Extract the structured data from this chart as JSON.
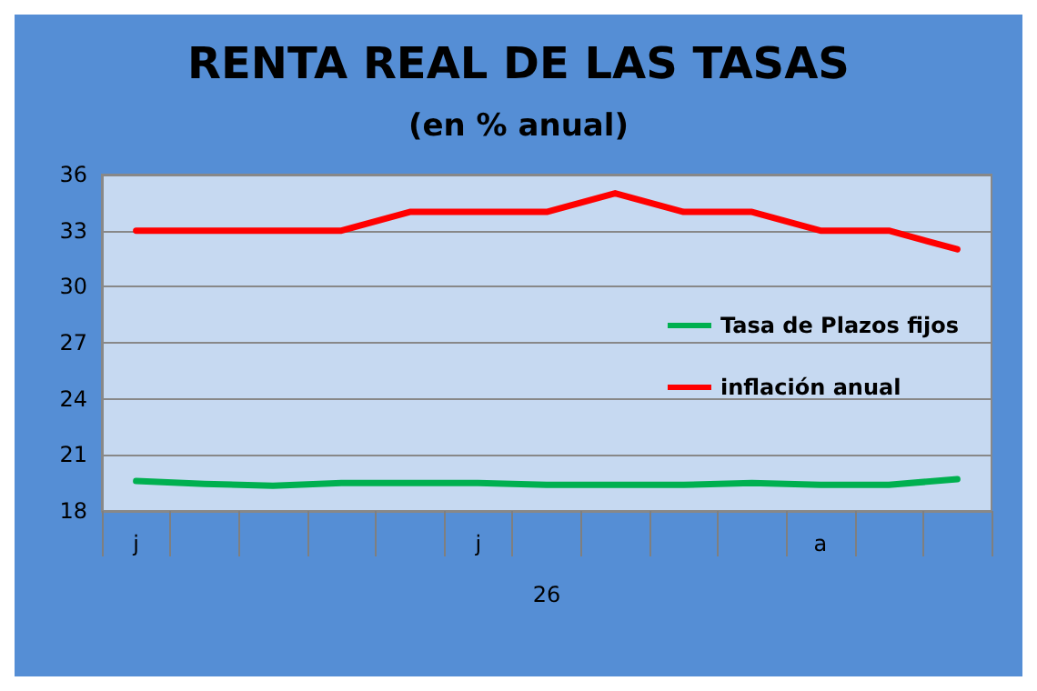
{
  "chart_data": {
    "type": "line",
    "title": "RENTA REAL DE LAS TASAS",
    "subtitle": "(en % anual)",
    "xlabel": "26",
    "categories": [
      "j",
      null,
      null,
      null,
      null,
      "j",
      null,
      null,
      null,
      null,
      "a",
      null,
      null
    ],
    "series": [
      {
        "name": "Tasa de Plazos fijos",
        "color": "#00b050",
        "values": [
          19.6,
          19.45,
          19.35,
          19.5,
          19.5,
          19.5,
          19.4,
          19.4,
          19.4,
          19.5,
          19.4,
          19.4,
          19.7
        ]
      },
      {
        "name": "inflación anual",
        "color": "#ff0000",
        "values": [
          33,
          33,
          33,
          33,
          34,
          34,
          34,
          35,
          34,
          34,
          33,
          33,
          32
        ]
      }
    ],
    "ylim": [
      18,
      36
    ],
    "yticks": [
      18,
      21,
      24,
      27,
      30,
      33,
      36
    ],
    "grid": "y",
    "legend": "right",
    "marker": "none",
    "line_style": "solid"
  }
}
